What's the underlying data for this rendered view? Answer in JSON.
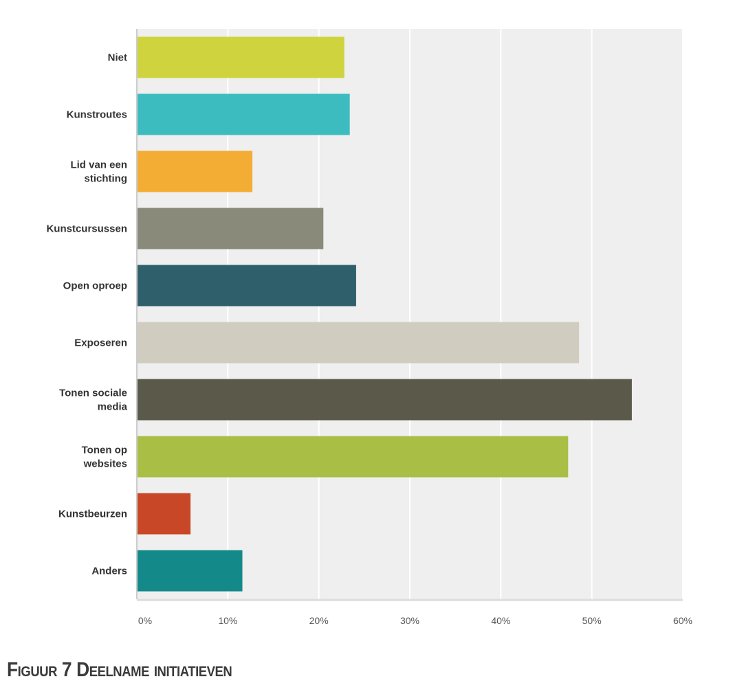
{
  "chart_data": {
    "type": "bar",
    "orientation": "horizontal",
    "title": "",
    "xlabel": "",
    "ylabel": "",
    "xlim": [
      0,
      60
    ],
    "grid": true,
    "ticks": [
      "0%",
      "10%",
      "20%",
      "30%",
      "40%",
      "50%",
      "60%"
    ],
    "tick_values": [
      0,
      10,
      20,
      30,
      40,
      50,
      60
    ],
    "categories": [
      [
        "Niet"
      ],
      [
        "Kunstroutes"
      ],
      [
        "Lid van een",
        "stichting"
      ],
      [
        "Kunstcursussen"
      ],
      [
        "Open oproep"
      ],
      [
        "Exposeren"
      ],
      [
        "Tonen sociale",
        "media"
      ],
      [
        "Tonen op",
        "websites"
      ],
      [
        "Kunstbeurzen"
      ],
      [
        "Anders"
      ]
    ],
    "values": [
      22.8,
      23.4,
      12.7,
      20.5,
      24.1,
      48.6,
      54.4,
      47.4,
      5.9,
      11.6
    ],
    "colors": [
      "#cfd33e",
      "#3dbcbf",
      "#f4ad34",
      "#8a8a7a",
      "#2f5f6b",
      "#d0cdc0",
      "#5b594a",
      "#a9be45",
      "#c84726",
      "#13898a"
    ]
  },
  "caption": "Figuur 7 Deelname initiatieven"
}
